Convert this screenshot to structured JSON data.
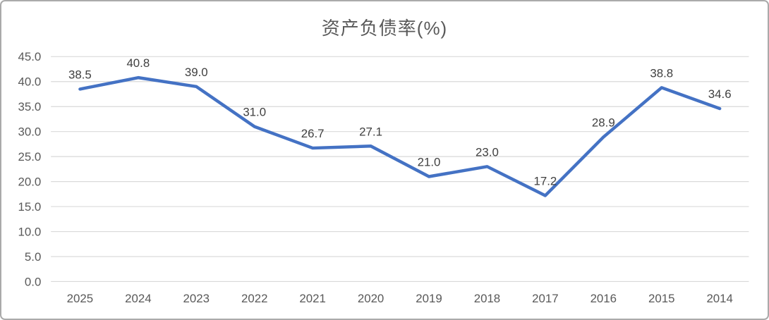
{
  "chart_data": {
    "type": "line",
    "title": "资产负债率(%)",
    "categories": [
      "2025",
      "2024",
      "2023",
      "2022",
      "2021",
      "2020",
      "2019",
      "2018",
      "2017",
      "2016",
      "2015",
      "2014"
    ],
    "series": [
      {
        "name": "资产负债率",
        "values": [
          38.5,
          40.8,
          39.0,
          31.0,
          26.7,
          27.1,
          21.0,
          23.0,
          17.2,
          28.9,
          38.8,
          34.6
        ],
        "data_labels": [
          "38.5",
          "40.8",
          "39.0",
          "31.0",
          "26.7",
          "27.1",
          "21.0",
          "23.0",
          "17.2",
          "28.9",
          "38.8",
          "34.6"
        ]
      }
    ],
    "xlabel": "",
    "ylabel": "",
    "ylim": [
      0,
      45
    ],
    "ytick_values": [
      0,
      5,
      10,
      15,
      20,
      25,
      30,
      35,
      40,
      45
    ],
    "ytick_labels": [
      "0.0",
      "5.0",
      "10.0",
      "15.0",
      "20.0",
      "25.0",
      "30.0",
      "35.0",
      "40.0",
      "45.0"
    ],
    "grid": true,
    "legend_position": "none",
    "colors": {
      "series_line": "#4472C4",
      "gridline": "#D9D9D9",
      "axis_text": "#595959",
      "data_label": "#404040",
      "title_text": "#595959",
      "background": "#FFFFFF",
      "card_border": "#AAAAAA"
    }
  }
}
